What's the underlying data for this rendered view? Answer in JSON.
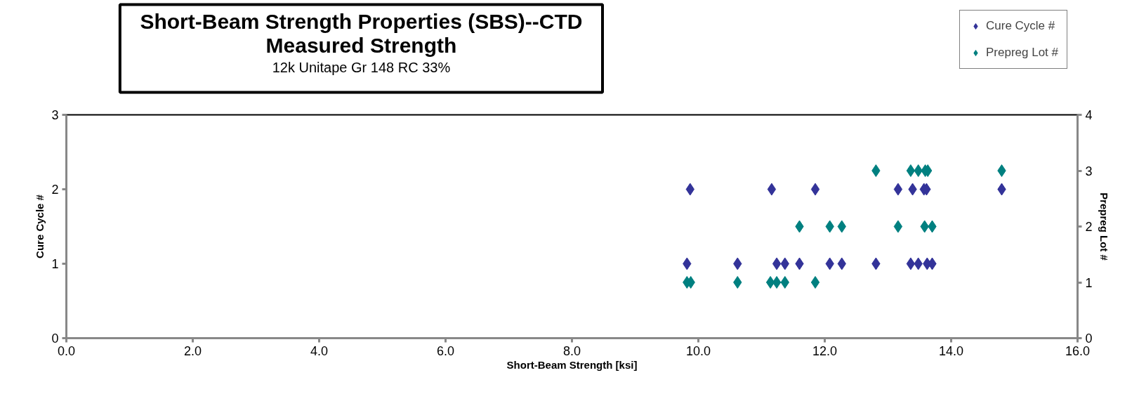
{
  "chart_data": {
    "type": "scatter",
    "title": "Short-Beam Strength Properties (SBS)--CTD\nMeasured Strength",
    "subtitle": "12k Unitape Gr 148 RC 33%",
    "xlabel": "Short-Beam Strength [ksi]",
    "ylabel": "Cure Cycle #",
    "y2label": "Prepreg Lot #",
    "xlim": [
      0,
      16
    ],
    "ylim": [
      0,
      3
    ],
    "y2lim": [
      0,
      4
    ],
    "xticks": [
      {
        "value": 0,
        "label": "0.0"
      },
      {
        "value": 2,
        "label": "2.0"
      },
      {
        "value": 4,
        "label": "4.0"
      },
      {
        "value": 6,
        "label": "6.0"
      },
      {
        "value": 8,
        "label": "8.0"
      },
      {
        "value": 10,
        "label": "10.0"
      },
      {
        "value": 12,
        "label": "12.0"
      },
      {
        "value": 14,
        "label": "14.0"
      },
      {
        "value": 16,
        "label": "16.0"
      }
    ],
    "yticks": [
      0,
      1,
      2,
      3
    ],
    "y2ticks": [
      0,
      1,
      2,
      3,
      4
    ],
    "marker": "diamond",
    "grid": false,
    "legend": "top right",
    "series": [
      {
        "name": "Cure Cycle #",
        "color": "#333399",
        "axis": "y",
        "x": [
          9.87,
          11.16,
          11.85,
          13.16,
          13.39,
          13.57,
          13.61,
          14.8,
          9.82,
          10.62,
          11.24,
          11.37,
          11.6,
          12.08,
          12.27,
          12.81,
          13.36,
          13.48,
          13.62,
          13.7
        ],
        "values": [
          2,
          2,
          2,
          2,
          2,
          2,
          2,
          2,
          1,
          1,
          1,
          1,
          1,
          1,
          1,
          1,
          1,
          1,
          1,
          1
        ]
      },
      {
        "name": "Prepreg Lot #",
        "color": "#008080",
        "axis": "y2",
        "x": [
          12.81,
          13.36,
          13.48,
          13.59,
          13.63,
          14.8,
          11.6,
          12.08,
          12.27,
          13.16,
          13.58,
          13.7,
          9.82,
          9.88,
          10.62,
          11.14,
          11.24,
          11.37,
          11.85
        ],
        "values": [
          3,
          3,
          3,
          3,
          3,
          3,
          2,
          2,
          2,
          2,
          2,
          2,
          1,
          1,
          1,
          1,
          1,
          1,
          1
        ]
      }
    ]
  }
}
